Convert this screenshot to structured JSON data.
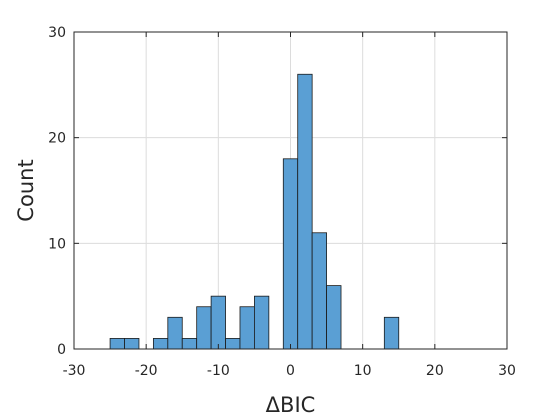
{
  "chart_data": {
    "type": "bar",
    "title": "",
    "xlabel": "ΔBIC",
    "ylabel": "Count",
    "xlim": [
      -30,
      30
    ],
    "ylim": [
      0,
      30
    ],
    "x_ticks": [
      "-30",
      "-20",
      "-10",
      "0",
      "10",
      "20",
      "30"
    ],
    "y_ticks": [
      "0",
      "10",
      "20",
      "30"
    ],
    "grid": true,
    "bin_width": 2,
    "bins": [
      {
        "start": -25,
        "end": -23,
        "count": 1
      },
      {
        "start": -23,
        "end": -21,
        "count": 1
      },
      {
        "start": -19,
        "end": -17,
        "count": 1
      },
      {
        "start": -17,
        "end": -15,
        "count": 3
      },
      {
        "start": -15,
        "end": -13,
        "count": 1
      },
      {
        "start": -13,
        "end": -11,
        "count": 4
      },
      {
        "start": -11,
        "end": -9,
        "count": 5
      },
      {
        "start": -9,
        "end": -7,
        "count": 1
      },
      {
        "start": -7,
        "end": -5,
        "count": 4
      },
      {
        "start": -5,
        "end": -3,
        "count": 5
      },
      {
        "start": -1,
        "end": 1,
        "count": 18
      },
      {
        "start": 1,
        "end": 3,
        "count": 26
      },
      {
        "start": 3,
        "end": 5,
        "count": 11
      },
      {
        "start": 5,
        "end": 7,
        "count": 6
      },
      {
        "start": 13,
        "end": 15,
        "count": 3
      }
    ],
    "colors": {
      "bar_fill": "#5a9fd4",
      "bar_stroke": "#1a1a1a",
      "grid": "#dcdcdc",
      "axis": "#262626"
    }
  }
}
